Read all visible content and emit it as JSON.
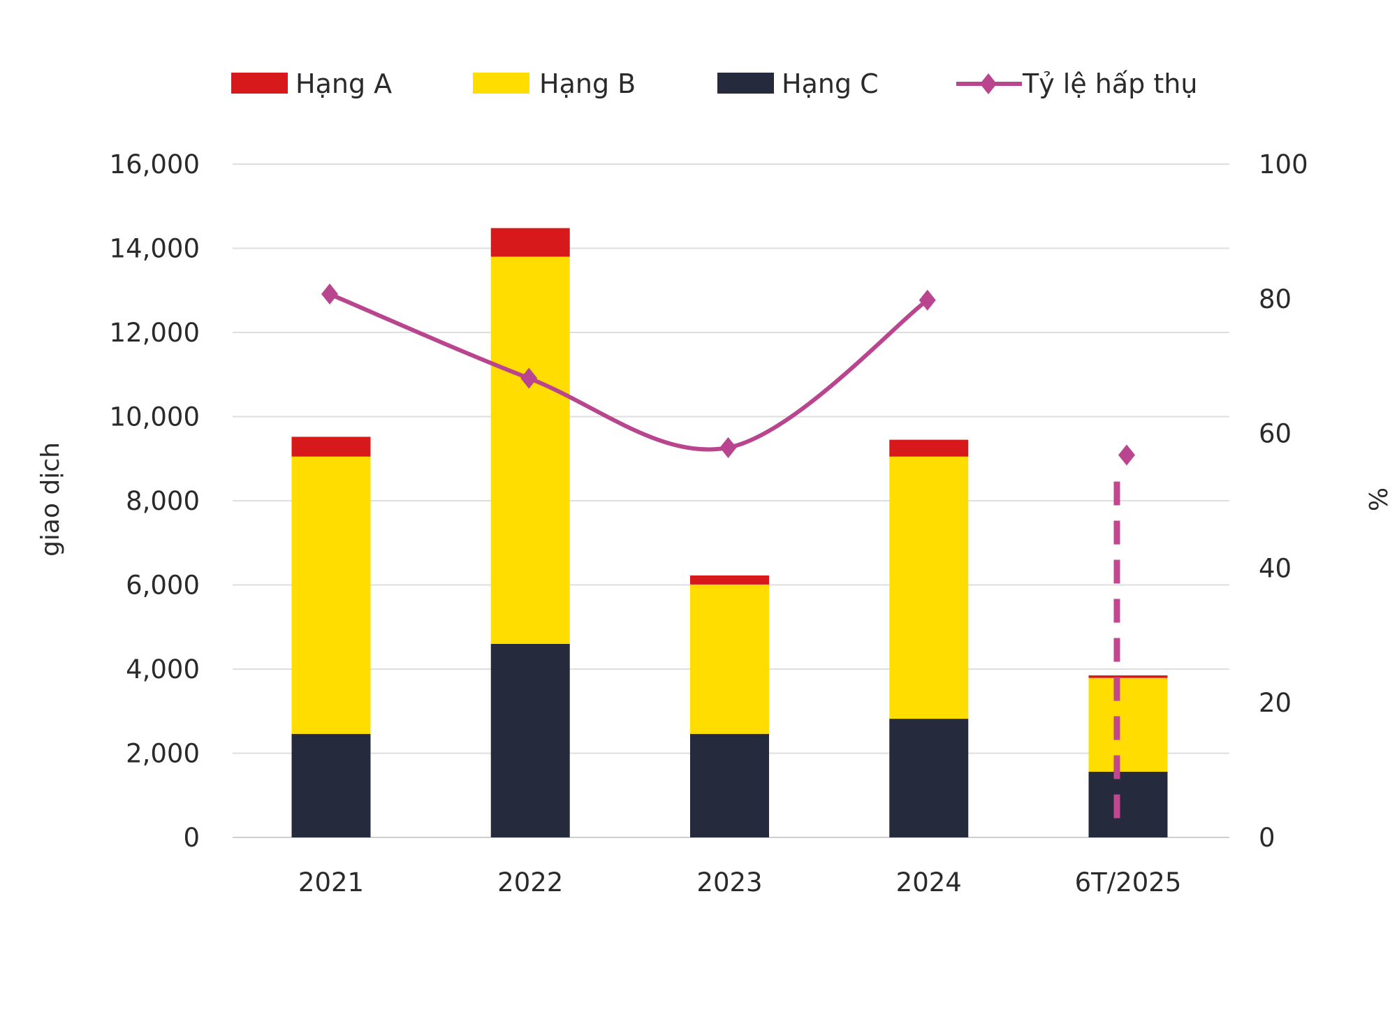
{
  "chart_data": {
    "type": "bar",
    "stacked": true,
    "categories": [
      "2021",
      "2022",
      "2023",
      "2024",
      "6T/2025"
    ],
    "series": [
      {
        "name": "Hạng A",
        "type": "bar",
        "color": "#d7191c",
        "values": [
          470,
          680,
          215,
          400,
          60
        ]
      },
      {
        "name": "Hạng B",
        "type": "bar",
        "color": "#ffdd00",
        "values": [
          6590,
          9200,
          3550,
          6230,
          2230
        ]
      },
      {
        "name": "Hạng C",
        "type": "bar",
        "color": "#252a3d",
        "values": [
          2460,
          4600,
          2460,
          2820,
          1560
        ]
      },
      {
        "name": "Tỷ lệ hấp thụ",
        "type": "line",
        "axis": "right",
        "color": "#b8458e",
        "marker": "diamond",
        "smooth": true,
        "values": [
          80.7,
          68.2,
          57.9,
          79.8,
          56.8
        ],
        "last_point_dashed_drop": true
      }
    ],
    "ylabel": "giao dịch",
    "ylabel_right": "%",
    "ylim": [
      0,
      16000
    ],
    "ylim_right": [
      0,
      100
    ],
    "yticks": [
      "0",
      "2,000",
      "4,000",
      "6,000",
      "8,000",
      "10,000",
      "12,000",
      "14,000",
      "16,000"
    ],
    "yticks_right": [
      "0",
      "20",
      "40",
      "60",
      "80",
      "100"
    ],
    "grid": true,
    "legend": "top"
  }
}
